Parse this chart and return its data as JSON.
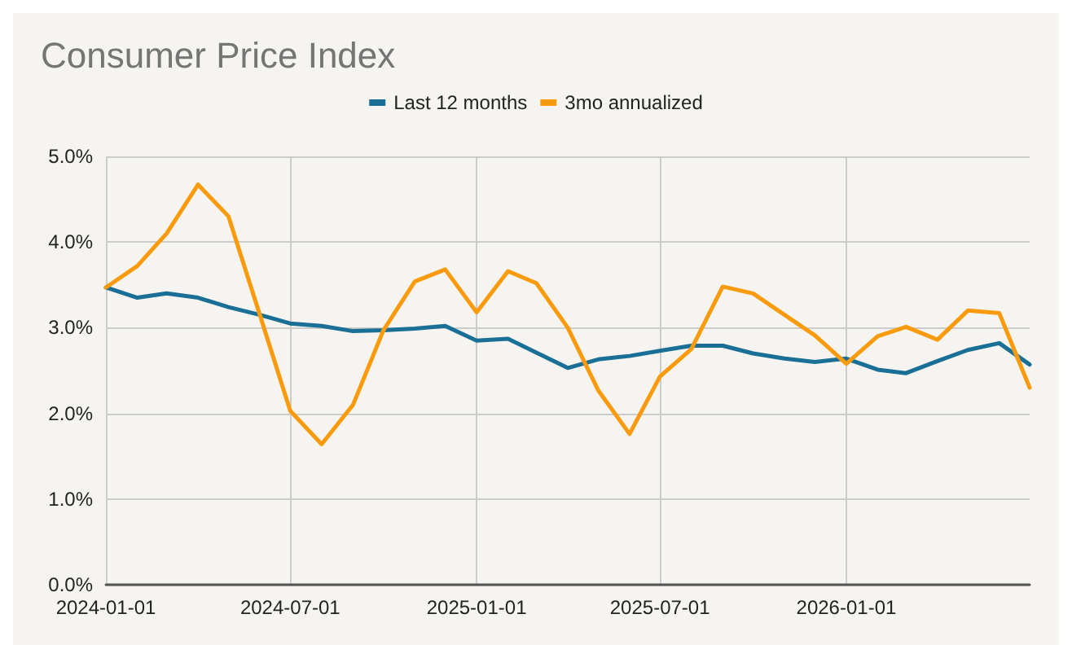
{
  "chart_data": {
    "type": "line",
    "title": "Consumer Price Index",
    "x": [
      "2024-01-01",
      "2024-02-01",
      "2024-03-01",
      "2024-04-01",
      "2024-05-01",
      "2024-06-01",
      "2024-07-01",
      "2024-08-01",
      "2024-09-01",
      "2024-10-01",
      "2024-11-01",
      "2024-12-01",
      "2025-01-01",
      "2025-02-01",
      "2025-03-01",
      "2025-04-01",
      "2025-05-01",
      "2025-06-01",
      "2025-07-01",
      "2025-08-01",
      "2025-09-01",
      "2025-10-01",
      "2025-11-01",
      "2025-12-01",
      "2026-01-01",
      "2026-02-01",
      "2026-03-01",
      "2026-04-01",
      "2026-05-01",
      "2026-06-01",
      "2026-07-01"
    ],
    "series": [
      {
        "name": "Last 12 months",
        "color": "#1a6f97",
        "values": [
          3.47,
          3.35,
          3.4,
          3.35,
          3.24,
          3.15,
          3.05,
          3.02,
          2.96,
          2.97,
          2.99,
          3.02,
          2.85,
          2.87,
          2.71,
          2.53,
          2.63,
          2.67,
          2.73,
          2.79,
          2.79,
          2.7,
          2.64,
          2.6,
          2.64,
          2.51,
          2.47,
          2.61,
          2.74,
          2.82,
          2.57
        ]
      },
      {
        "name": "3mo annualized",
        "color": "#f99b0c",
        "values": [
          3.47,
          3.72,
          4.1,
          4.67,
          4.3,
          3.15,
          2.03,
          1.64,
          2.1,
          2.97,
          3.54,
          3.68,
          3.18,
          3.66,
          3.52,
          3.0,
          2.27,
          1.76,
          2.43,
          2.75,
          3.48,
          3.4,
          3.15,
          2.91,
          2.58,
          2.9,
          3.01,
          2.86,
          3.2,
          3.17,
          2.3
        ]
      }
    ],
    "xlim": [
      "2024-01-01",
      "2026-07-01"
    ],
    "xticks": [
      "2024-01-01",
      "2024-07-01",
      "2025-01-01",
      "2025-07-01",
      "2026-01-01"
    ],
    "ylim": [
      0,
      5
    ],
    "yticks": [
      {
        "value": 0,
        "label": "0.0%"
      },
      {
        "value": 1,
        "label": "1.0%"
      },
      {
        "value": 2,
        "label": "2.0%"
      },
      {
        "value": 3,
        "label": "3.0%"
      },
      {
        "value": 4,
        "label": "4.0%"
      },
      {
        "value": 5,
        "label": "5.0%"
      }
    ],
    "grid": true,
    "legend": "top",
    "marker": "none",
    "line_style": "solid"
  }
}
